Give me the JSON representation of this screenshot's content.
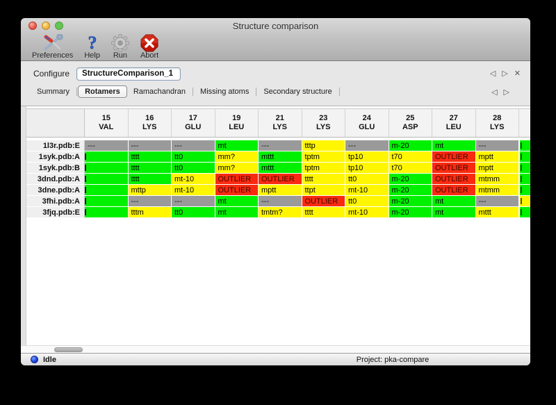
{
  "window": {
    "title": "Structure comparison"
  },
  "toolbar": {
    "items": [
      {
        "label": "Preferences",
        "icon": "tools-icon"
      },
      {
        "label": "Help",
        "icon": "help-icon"
      },
      {
        "label": "Run",
        "icon": "gear-icon"
      },
      {
        "label": "Abort",
        "icon": "abort-icon"
      }
    ]
  },
  "configure": {
    "label": "Configure",
    "value": "StructureComparison_1",
    "nav_prev": "◁",
    "nav_next": "▷",
    "nav_close": "✕"
  },
  "tabs": {
    "items": [
      "Summary",
      "Rotamers",
      "Ramachandran",
      "Missing atoms",
      "Secondary structure"
    ],
    "selected": "Rotamers",
    "nav_prev": "◁",
    "nav_next": "▷"
  },
  "table": {
    "columns": [
      {
        "num": "15",
        "res": "VAL"
      },
      {
        "num": "16",
        "res": "LYS"
      },
      {
        "num": "17",
        "res": "GLU"
      },
      {
        "num": "19",
        "res": "LEU"
      },
      {
        "num": "21",
        "res": "LYS"
      },
      {
        "num": "23",
        "res": "LYS"
      },
      {
        "num": "24",
        "res": "GLU"
      },
      {
        "num": "25",
        "res": "ASP"
      },
      {
        "num": "27",
        "res": "LEU"
      },
      {
        "num": "28",
        "res": "LYS"
      }
    ],
    "rows": [
      {
        "label": "1l3r.pdb:E",
        "cells": [
          [
            "---",
            "gray"
          ],
          [
            "---",
            "gray"
          ],
          [
            "---",
            "gray"
          ],
          [
            "mt",
            "green"
          ],
          [
            "---",
            "gray"
          ],
          [
            "tttp",
            "yellow"
          ],
          [
            "---",
            "gray"
          ],
          [
            "m-20",
            "green"
          ],
          [
            "mt",
            "green"
          ],
          [
            "---",
            "gray"
          ]
        ],
        "edge": "green"
      },
      {
        "label": "1syk.pdb:A",
        "cells": [
          [
            "",
            "green",
            "clip"
          ],
          [
            "tttt",
            "green"
          ],
          [
            "tt0",
            "green"
          ],
          [
            "mm?",
            "yellow"
          ],
          [
            "mttt",
            "green"
          ],
          [
            "tptm",
            "yellow"
          ],
          [
            "tp10",
            "yellow"
          ],
          [
            "t70",
            "yellow"
          ],
          [
            "OUTLIER",
            "red"
          ],
          [
            "mptt",
            "yellow"
          ]
        ],
        "edge": "green"
      },
      {
        "label": "1syk.pdb:B",
        "cells": [
          [
            "",
            "green",
            "clip"
          ],
          [
            "tttt",
            "green"
          ],
          [
            "tt0",
            "green"
          ],
          [
            "mm?",
            "yellow"
          ],
          [
            "mttt",
            "green"
          ],
          [
            "tptm",
            "yellow"
          ],
          [
            "tp10",
            "yellow"
          ],
          [
            "t70",
            "yellow"
          ],
          [
            "OUTLIER",
            "red"
          ],
          [
            "mptt",
            "yellow"
          ]
        ],
        "edge": "green"
      },
      {
        "label": "3dnd.pdb:A",
        "cells": [
          [
            "",
            "green",
            "clip"
          ],
          [
            "tttt",
            "green"
          ],
          [
            "mt-10",
            "yellow"
          ],
          [
            "OUTLIER",
            "red"
          ],
          [
            "OUTLIER",
            "red"
          ],
          [
            "tttt",
            "yellow"
          ],
          [
            "tt0",
            "yellow"
          ],
          [
            "m-20",
            "green"
          ],
          [
            "OUTLIER",
            "red"
          ],
          [
            "mtmm",
            "yellow"
          ]
        ],
        "edge": "green"
      },
      {
        "label": "3dne.pdb:A",
        "cells": [
          [
            "",
            "green",
            "clip"
          ],
          [
            "mttp",
            "yellow"
          ],
          [
            "mt-10",
            "yellow"
          ],
          [
            "OUTLIER",
            "red"
          ],
          [
            "mptt",
            "yellow"
          ],
          [
            "ttpt",
            "yellow"
          ],
          [
            "mt-10",
            "yellow"
          ],
          [
            "m-20",
            "green"
          ],
          [
            "OUTLIER",
            "red"
          ],
          [
            "mtmm",
            "yellow"
          ]
        ],
        "edge": "green"
      },
      {
        "label": "3fhi.pdb:A",
        "cells": [
          [
            "",
            "green",
            "clip"
          ],
          [
            "---",
            "gray"
          ],
          [
            "---",
            "gray"
          ],
          [
            "mt",
            "green"
          ],
          [
            "---",
            "gray"
          ],
          [
            "OUTLIER",
            "red"
          ],
          [
            "tt0",
            "yellow"
          ],
          [
            "m-20",
            "green"
          ],
          [
            "mt",
            "green"
          ],
          [
            "---",
            "gray"
          ]
        ],
        "edge": "yellow"
      },
      {
        "label": "3fjq.pdb:E",
        "cells": [
          [
            "",
            "green",
            "clip"
          ],
          [
            "tttm",
            "yellow"
          ],
          [
            "tt0",
            "green"
          ],
          [
            "mt",
            "green"
          ],
          [
            "tmtm?",
            "yellow"
          ],
          [
            "tttt",
            "yellow"
          ],
          [
            "mt-10",
            "yellow"
          ],
          [
            "m-20",
            "green"
          ],
          [
            "mt",
            "green"
          ],
          [
            "mttt",
            "yellow"
          ]
        ],
        "edge": "green"
      }
    ]
  },
  "statusbar": {
    "status": "Idle",
    "project": "Project: pka-compare"
  },
  "colors": {
    "rotamer_ok_green": "#00f100",
    "rotamer_warn_yellow": "#fff600",
    "rotamer_outlier_red": "#f92a10",
    "missing_gray": "#9a9a9a",
    "status_dot_blue": "#1c45e0"
  }
}
